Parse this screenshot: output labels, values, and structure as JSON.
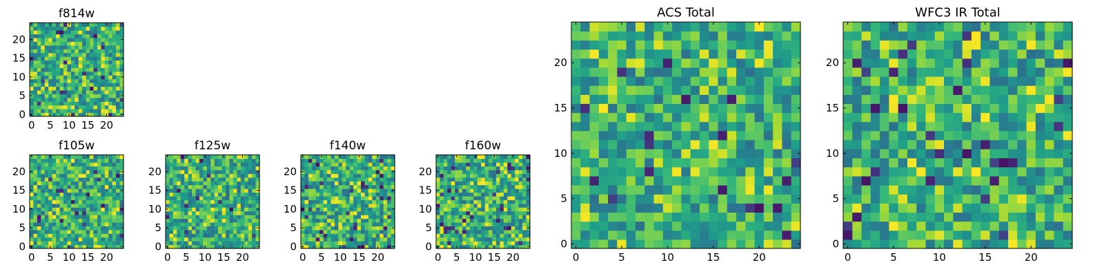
{
  "colormap": "viridis",
  "chart_data": [
    {
      "type": "heatmap",
      "title": "f814w",
      "grid_size": [
        25,
        25
      ],
      "xticks": [
        0,
        5,
        10,
        15,
        20
      ],
      "yticks": [
        0,
        5,
        10,
        15,
        20
      ],
      "xlim": [
        -0.5,
        24.5
      ],
      "ylim": [
        -0.5,
        24.5
      ],
      "values_note": ""
    },
    {
      "type": "heatmap",
      "title": "f105w",
      "grid_size": [
        25,
        25
      ],
      "xticks": [
        0,
        5,
        10,
        15,
        20
      ],
      "yticks": [
        0,
        5,
        10,
        15,
        20
      ],
      "xlim": [
        -0.5,
        24.5
      ],
      "ylim": [
        -0.5,
        24.5
      ]
    },
    {
      "type": "heatmap",
      "title": "f125w",
      "grid_size": [
        25,
        25
      ],
      "xticks": [
        0,
        5,
        10,
        15,
        20
      ],
      "yticks": [
        0,
        5,
        10,
        15,
        20
      ],
      "xlim": [
        -0.5,
        24.5
      ],
      "ylim": [
        -0.5,
        24.5
      ]
    },
    {
      "type": "heatmap",
      "title": "f140w",
      "grid_size": [
        25,
        25
      ],
      "xticks": [
        0,
        5,
        10,
        15,
        20
      ],
      "yticks": [
        0,
        5,
        10,
        15,
        20
      ],
      "xlim": [
        -0.5,
        24.5
      ],
      "ylim": [
        -0.5,
        24.5
      ]
    },
    {
      "type": "heatmap",
      "title": "f160w",
      "grid_size": [
        25,
        25
      ],
      "xticks": [
        0,
        5,
        10,
        15,
        20
      ],
      "yticks": [
        0,
        5,
        10,
        15,
        20
      ],
      "xlim": [
        -0.5,
        24.5
      ],
      "ylim": [
        -0.5,
        24.5
      ]
    },
    {
      "type": "heatmap",
      "title": "ACS Total",
      "grid_size": [
        25,
        25
      ],
      "xticks": [
        0,
        5,
        10,
        15,
        20
      ],
      "yticks": [
        0,
        5,
        10,
        15,
        20
      ],
      "xlim": [
        -0.5,
        24.5
      ],
      "ylim": [
        -0.5,
        24.5
      ]
    },
    {
      "type": "heatmap",
      "title": "WFC3 IR Total",
      "grid_size": [
        25,
        25
      ],
      "xticks": [
        0,
        5,
        10,
        15,
        20
      ],
      "yticks": [
        0,
        5,
        10,
        15,
        20
      ],
      "xlim": [
        -0.5,
        24.5
      ],
      "ylim": [
        -0.5,
        24.5
      ]
    }
  ]
}
